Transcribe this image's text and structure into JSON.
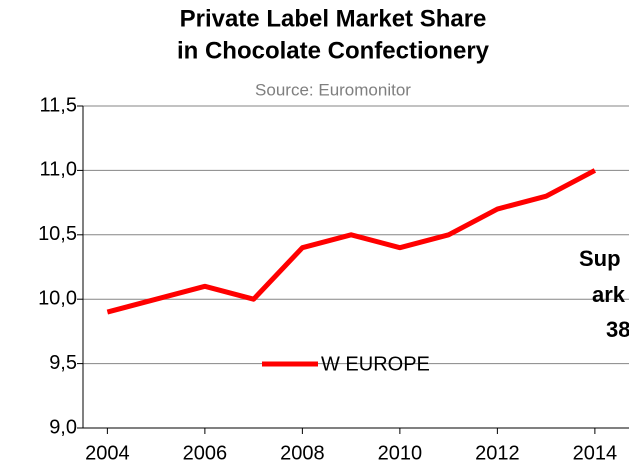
{
  "chart_data": {
    "type": "line",
    "title": [
      "Private Label Market Share",
      "in Chocolate Confectionery"
    ],
    "subtitle": "Source: Euromonitor",
    "x": [
      2004,
      2005,
      2006,
      2007,
      2008,
      2009,
      2010,
      2011,
      2012,
      2013,
      2014
    ],
    "series": [
      {
        "name": "W EUROPE",
        "color": "#ff0000",
        "values": [
          9.9,
          10.0,
          10.1,
          10.0,
          10.4,
          10.5,
          10.4,
          10.5,
          10.7,
          10.8,
          11.0
        ]
      }
    ],
    "xlim": [
      2003.5,
      2014.7
    ],
    "xticks": [
      2004,
      2006,
      2008,
      2010,
      2012,
      2014
    ],
    "ylim": [
      9.0,
      11.5
    ],
    "yticks": [
      {
        "value": 9.0,
        "label": "9,0"
      },
      {
        "value": 9.5,
        "label": "9,5"
      },
      {
        "value": 10.0,
        "label": "10,0"
      },
      {
        "value": 10.5,
        "label": "10,5"
      },
      {
        "value": 11.0,
        "label": "11,0"
      },
      {
        "value": 11.5,
        "label": "11,5"
      }
    ],
    "grid": true,
    "annotation": [
      "Sup",
      "ark",
      "38"
    ]
  }
}
